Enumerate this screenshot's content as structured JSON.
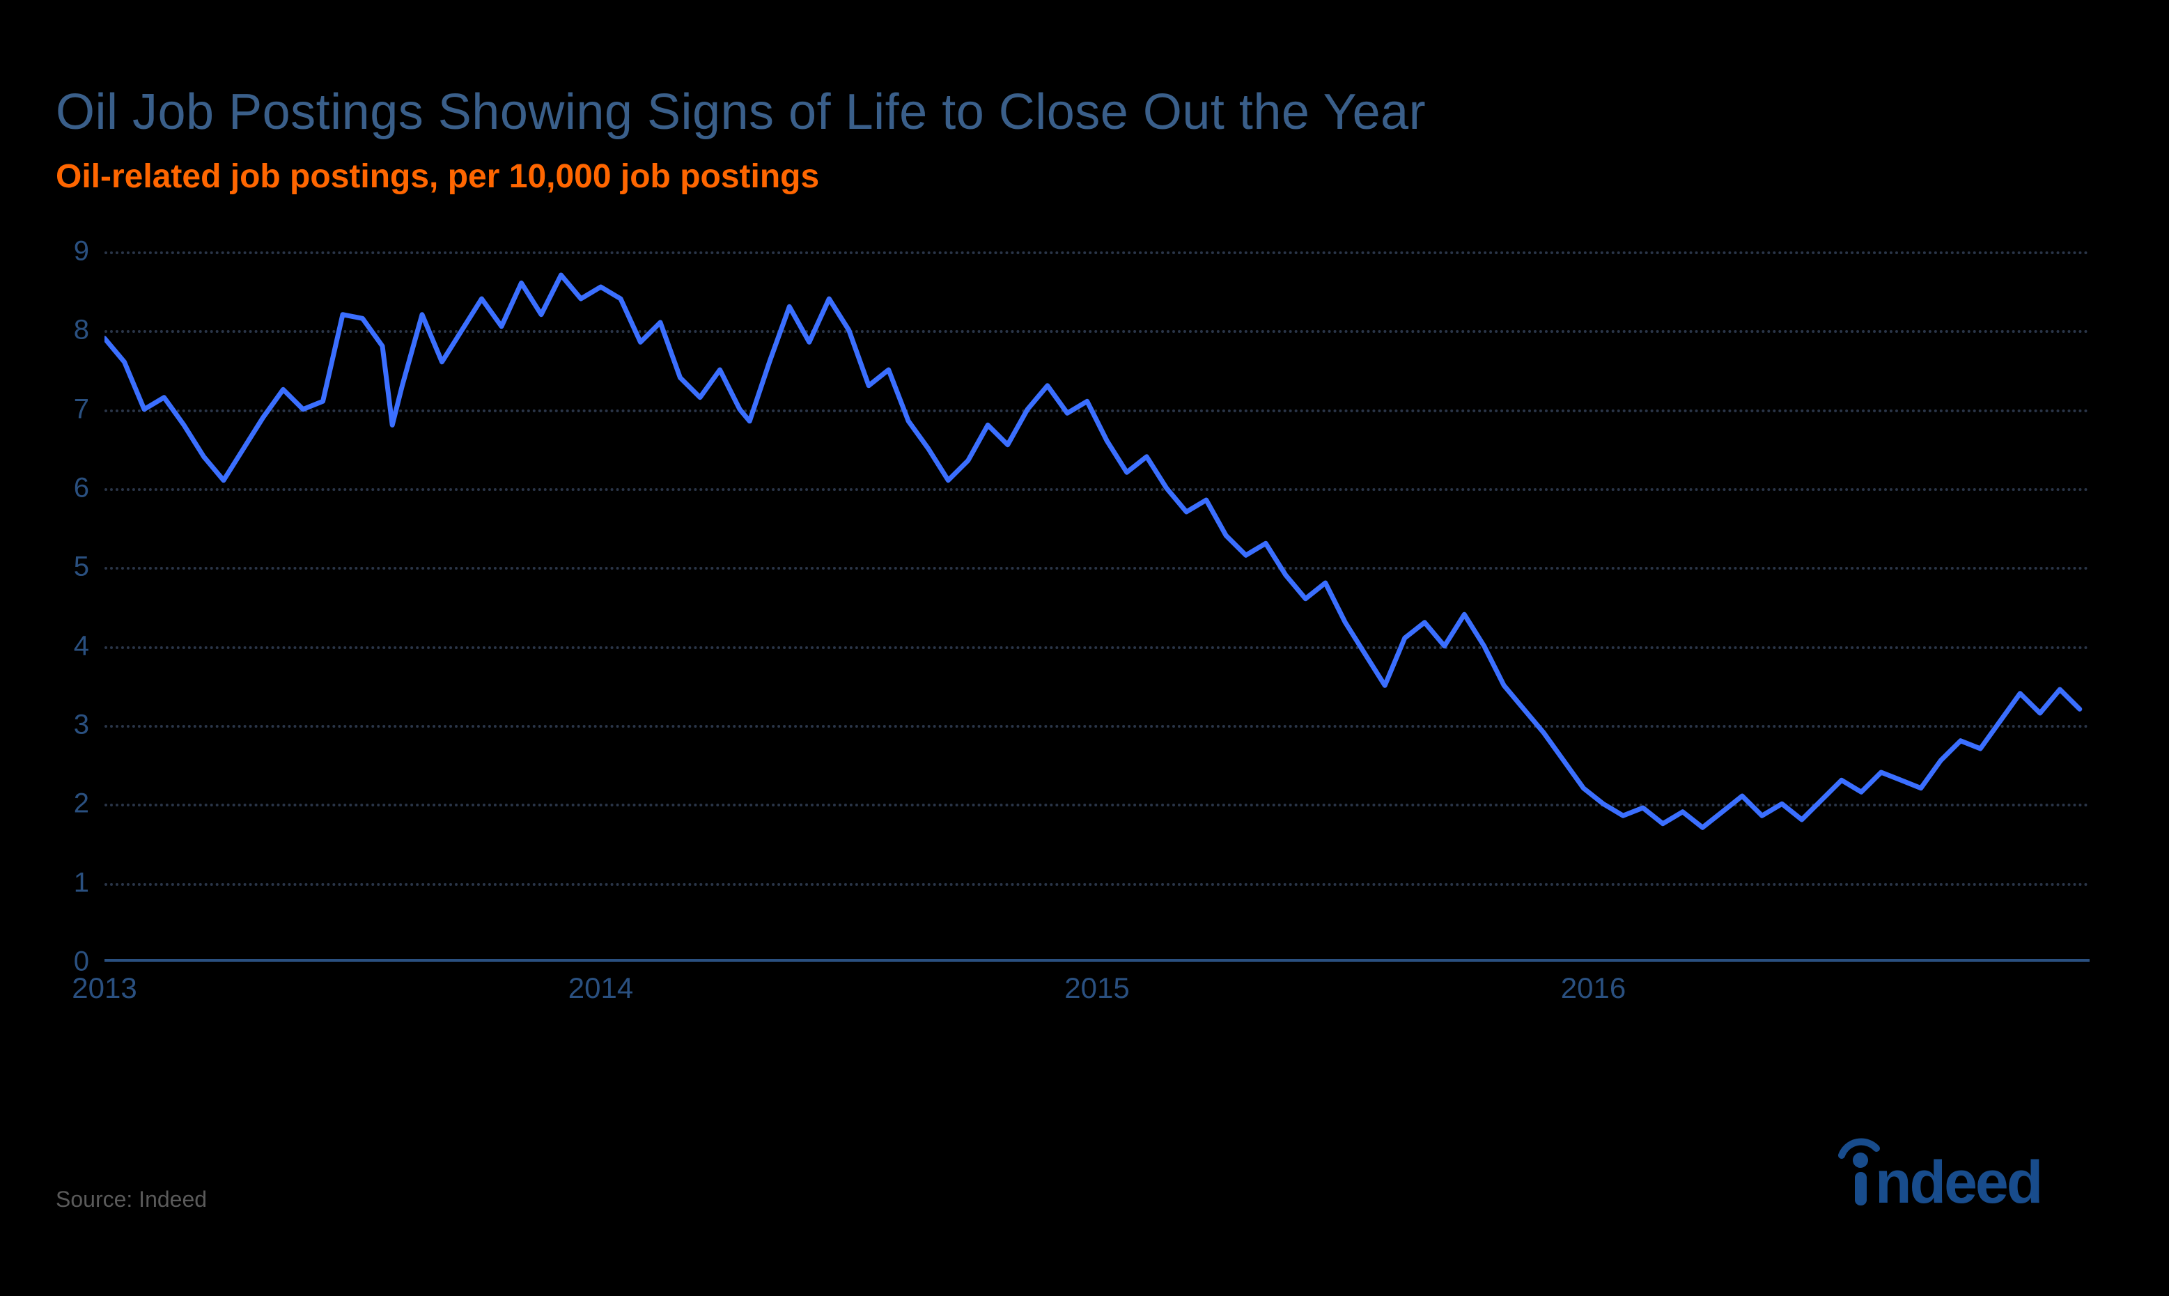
{
  "chart": {
    "type": "line",
    "title": "Oil Job Postings Showing Signs of Life to Close Out the Year",
    "subtitle": "Oil-related job postings, per 10,000 job postings",
    "title_color": "#3a5f8a",
    "title_fontsize": 72,
    "subtitle_color": "#ff6600",
    "subtitle_fontsize": 48,
    "background_color": "#000000",
    "grid_color": "#2a3548",
    "axis_color": "#2a5080",
    "line_color": "#3b6fff",
    "line_width": 7,
    "ylim": [
      0,
      9
    ],
    "ytick_step": 1,
    "yticks": [
      0,
      1,
      2,
      3,
      4,
      5,
      6,
      7,
      8,
      9
    ],
    "xlim_years": [
      2013,
      2017
    ],
    "xticks": [
      {
        "year": 2013,
        "label": "2013"
      },
      {
        "year": 2014,
        "label": "2014"
      },
      {
        "year": 2015,
        "label": "2015"
      },
      {
        "year": 2016,
        "label": "2016"
      }
    ],
    "series": {
      "name": "oil_job_postings_per_10k",
      "data": [
        {
          "x": 2013.0,
          "y": 7.9
        },
        {
          "x": 2013.04,
          "y": 7.6
        },
        {
          "x": 2013.08,
          "y": 7.0
        },
        {
          "x": 2013.12,
          "y": 7.15
        },
        {
          "x": 2013.16,
          "y": 6.8
        },
        {
          "x": 2013.2,
          "y": 6.4
        },
        {
          "x": 2013.24,
          "y": 6.1
        },
        {
          "x": 2013.28,
          "y": 6.5
        },
        {
          "x": 2013.32,
          "y": 6.9
        },
        {
          "x": 2013.36,
          "y": 7.25
        },
        {
          "x": 2013.4,
          "y": 7.0
        },
        {
          "x": 2013.44,
          "y": 7.1
        },
        {
          "x": 2013.48,
          "y": 8.2
        },
        {
          "x": 2013.52,
          "y": 8.15
        },
        {
          "x": 2013.56,
          "y": 7.8
        },
        {
          "x": 2013.58,
          "y": 6.8
        },
        {
          "x": 2013.6,
          "y": 7.3
        },
        {
          "x": 2013.64,
          "y": 8.2
        },
        {
          "x": 2013.68,
          "y": 7.6
        },
        {
          "x": 2013.72,
          "y": 8.0
        },
        {
          "x": 2013.76,
          "y": 8.4
        },
        {
          "x": 2013.8,
          "y": 8.05
        },
        {
          "x": 2013.84,
          "y": 8.6
        },
        {
          "x": 2013.88,
          "y": 8.2
        },
        {
          "x": 2013.92,
          "y": 8.7
        },
        {
          "x": 2013.96,
          "y": 8.4
        },
        {
          "x": 2014.0,
          "y": 8.55
        },
        {
          "x": 2014.04,
          "y": 8.4
        },
        {
          "x": 2014.08,
          "y": 7.85
        },
        {
          "x": 2014.12,
          "y": 8.1
        },
        {
          "x": 2014.16,
          "y": 7.4
        },
        {
          "x": 2014.2,
          "y": 7.15
        },
        {
          "x": 2014.24,
          "y": 7.5
        },
        {
          "x": 2014.28,
          "y": 7.0
        },
        {
          "x": 2014.3,
          "y": 6.85
        },
        {
          "x": 2014.34,
          "y": 7.6
        },
        {
          "x": 2014.38,
          "y": 8.3
        },
        {
          "x": 2014.42,
          "y": 7.85
        },
        {
          "x": 2014.46,
          "y": 8.4
        },
        {
          "x": 2014.5,
          "y": 8.0
        },
        {
          "x": 2014.54,
          "y": 7.3
        },
        {
          "x": 2014.58,
          "y": 7.5
        },
        {
          "x": 2014.62,
          "y": 6.85
        },
        {
          "x": 2014.66,
          "y": 6.5
        },
        {
          "x": 2014.7,
          "y": 6.1
        },
        {
          "x": 2014.74,
          "y": 6.35
        },
        {
          "x": 2014.78,
          "y": 6.8
        },
        {
          "x": 2014.82,
          "y": 6.55
        },
        {
          "x": 2014.86,
          "y": 7.0
        },
        {
          "x": 2014.9,
          "y": 7.3
        },
        {
          "x": 2014.94,
          "y": 6.95
        },
        {
          "x": 2014.98,
          "y": 7.1
        },
        {
          "x": 2015.02,
          "y": 6.6
        },
        {
          "x": 2015.06,
          "y": 6.2
        },
        {
          "x": 2015.1,
          "y": 6.4
        },
        {
          "x": 2015.14,
          "y": 6.0
        },
        {
          "x": 2015.18,
          "y": 5.7
        },
        {
          "x": 2015.22,
          "y": 5.85
        },
        {
          "x": 2015.26,
          "y": 5.4
        },
        {
          "x": 2015.3,
          "y": 5.15
        },
        {
          "x": 2015.34,
          "y": 5.3
        },
        {
          "x": 2015.38,
          "y": 4.9
        },
        {
          "x": 2015.42,
          "y": 4.6
        },
        {
          "x": 2015.46,
          "y": 4.8
        },
        {
          "x": 2015.5,
          "y": 4.3
        },
        {
          "x": 2015.54,
          "y": 3.9
        },
        {
          "x": 2015.58,
          "y": 3.5
        },
        {
          "x": 2015.62,
          "y": 4.1
        },
        {
          "x": 2015.66,
          "y": 4.3
        },
        {
          "x": 2015.7,
          "y": 4.0
        },
        {
          "x": 2015.74,
          "y": 4.4
        },
        {
          "x": 2015.78,
          "y": 4.0
        },
        {
          "x": 2015.82,
          "y": 3.5
        },
        {
          "x": 2015.86,
          "y": 3.2
        },
        {
          "x": 2015.9,
          "y": 2.9
        },
        {
          "x": 2015.94,
          "y": 2.55
        },
        {
          "x": 2015.98,
          "y": 2.2
        },
        {
          "x": 2016.02,
          "y": 2.0
        },
        {
          "x": 2016.06,
          "y": 1.85
        },
        {
          "x": 2016.1,
          "y": 1.95
        },
        {
          "x": 2016.14,
          "y": 1.75
        },
        {
          "x": 2016.18,
          "y": 1.9
        },
        {
          "x": 2016.22,
          "y": 1.7
        },
        {
          "x": 2016.26,
          "y": 1.9
        },
        {
          "x": 2016.3,
          "y": 2.1
        },
        {
          "x": 2016.34,
          "y": 1.85
        },
        {
          "x": 2016.38,
          "y": 2.0
        },
        {
          "x": 2016.42,
          "y": 1.8
        },
        {
          "x": 2016.46,
          "y": 2.05
        },
        {
          "x": 2016.5,
          "y": 2.3
        },
        {
          "x": 2016.54,
          "y": 2.15
        },
        {
          "x": 2016.58,
          "y": 2.4
        },
        {
          "x": 2016.62,
          "y": 2.3
        },
        {
          "x": 2016.66,
          "y": 2.2
        },
        {
          "x": 2016.7,
          "y": 2.55
        },
        {
          "x": 2016.74,
          "y": 2.8
        },
        {
          "x": 2016.78,
          "y": 2.7
        },
        {
          "x": 2016.82,
          "y": 3.05
        },
        {
          "x": 2016.86,
          "y": 3.4
        },
        {
          "x": 2016.9,
          "y": 3.15
        },
        {
          "x": 2016.94,
          "y": 3.45
        },
        {
          "x": 2016.98,
          "y": 3.2
        }
      ]
    }
  },
  "source": "Source: Indeed",
  "logo_text": "indeed"
}
